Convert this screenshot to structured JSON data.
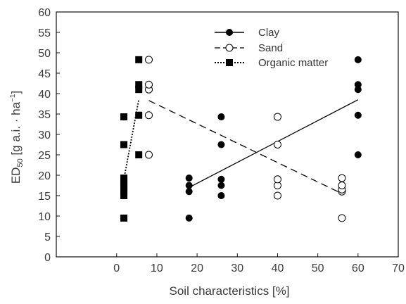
{
  "chart_data": {
    "type": "scatter",
    "title": "",
    "xlabel": "Soil characteristics [%]",
    "ylabel": {
      "prefix": "ED",
      "subscript": "50",
      "units": " [g a.i. · ha",
      "superscript": "−1",
      "close": "]"
    },
    "xlim": [
      -15,
      70
    ],
    "ylim": [
      0,
      60
    ],
    "xticks": [
      0,
      10,
      20,
      30,
      40,
      50,
      60,
      70
    ],
    "yticks": [
      0,
      5,
      10,
      15,
      20,
      25,
      30,
      35,
      40,
      45,
      50,
      55,
      60
    ],
    "grid": false,
    "legend_position": "top-right",
    "series": [
      {
        "name": "Clay",
        "marker": "filled-circle",
        "line_style": "solid",
        "color": "#000000",
        "points": [
          [
            18,
            9.5
          ],
          [
            18,
            16
          ],
          [
            18,
            17.5
          ],
          [
            18,
            19.3
          ],
          [
            26,
            15
          ],
          [
            26,
            17.5
          ],
          [
            26,
            19
          ],
          [
            26,
            27.5
          ],
          [
            26,
            34.3
          ],
          [
            60,
            25
          ],
          [
            60,
            34.7
          ],
          [
            60,
            41
          ],
          [
            60,
            42.2
          ],
          [
            60,
            48.3
          ]
        ],
        "fit": [
          [
            18,
            17
          ],
          [
            60,
            38.5
          ]
        ]
      },
      {
        "name": "Sand",
        "marker": "open-circle",
        "line_style": "dashed",
        "color": "#000000",
        "points": [
          [
            8,
            25
          ],
          [
            8,
            34.7
          ],
          [
            8,
            41
          ],
          [
            8,
            42.2
          ],
          [
            8,
            48.3
          ],
          [
            40,
            15
          ],
          [
            40,
            17.5
          ],
          [
            40,
            19
          ],
          [
            40,
            27.5
          ],
          [
            40,
            34.3
          ],
          [
            56,
            9.5
          ],
          [
            56,
            16
          ],
          [
            56,
            16.5
          ],
          [
            56,
            17.5
          ],
          [
            56,
            19.3
          ]
        ],
        "fit": [
          [
            8,
            38.3
          ],
          [
            56,
            15.5
          ]
        ]
      },
      {
        "name": "Organic matter",
        "marker": "filled-square",
        "line_style": "dotted",
        "color": "#000000",
        "points": [
          [
            1.8,
            9.5
          ],
          [
            1.8,
            15
          ],
          [
            1.8,
            16
          ],
          [
            1.8,
            16.8
          ],
          [
            1.8,
            17.6
          ],
          [
            1.8,
            18.4
          ],
          [
            1.8,
            19.3
          ],
          [
            1.8,
            27.5
          ],
          [
            1.8,
            34.3
          ],
          [
            5.5,
            25
          ],
          [
            5.5,
            34.7
          ],
          [
            5.5,
            41
          ],
          [
            5.5,
            42.2
          ],
          [
            5.5,
            48.3
          ]
        ],
        "fit": [
          [
            1.8,
            19
          ],
          [
            5.5,
            38.5
          ]
        ]
      }
    ]
  }
}
